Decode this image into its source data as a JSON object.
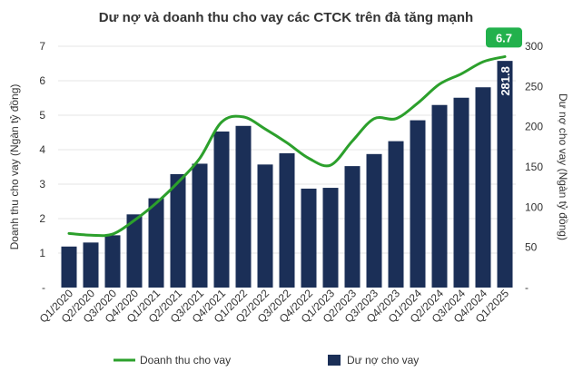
{
  "chart_data": {
    "type": "bar+line",
    "title": "Dư nợ và doanh thu cho vay các CTCK trên đà tăng mạnh",
    "categories": [
      "Q1/2020",
      "Q2/2020",
      "Q3/2020",
      "Q4/2020",
      "Q1/2021",
      "Q2/2021",
      "Q3/2021",
      "Q4/2021",
      "Q1/2022",
      "Q2/2022",
      "Q3/2022",
      "Q4/2022",
      "Q1/2023",
      "Q2/2023",
      "Q3/2023",
      "Q4/2023",
      "Q1/2024",
      "Q2/2024",
      "Q3/2024",
      "Q4/2024",
      "Q1/2025"
    ],
    "series": [
      {
        "name": "Doanh thu cho vay",
        "kind": "line",
        "axis": "left",
        "color": "#2ca02c",
        "values": [
          1.57,
          1.52,
          1.55,
          1.95,
          2.45,
          3.05,
          3.75,
          4.8,
          4.95,
          4.6,
          4.2,
          3.75,
          3.55,
          4.25,
          4.9,
          4.9,
          5.35,
          5.9,
          6.2,
          6.55,
          6.7
        ],
        "last_label": "6.7",
        "last_label_color": "#22b14c"
      },
      {
        "name": "Dư nợ cho vay",
        "kind": "bar",
        "axis": "right",
        "color": "#1b2f57",
        "values": [
          51,
          56,
          65,
          91,
          111,
          141,
          154,
          194,
          201,
          153,
          167,
          123,
          124,
          151,
          166,
          182,
          208,
          227,
          236,
          249,
          281.8
        ],
        "last_label": "281.8"
      }
    ],
    "left_axis": {
      "label": "Doanh thu cho vay (Ngàn tỷ đồng)",
      "ylim": [
        0,
        7
      ],
      "ticks": [
        0,
        1,
        2,
        3,
        4,
        5,
        6,
        7
      ],
      "tick_labels": [
        "-",
        "1",
        "2",
        "3",
        "4",
        "5",
        "6",
        "7"
      ]
    },
    "right_axis": {
      "label": "Dư nợ cho vay (Ngàn tỷ đồng)",
      "ylim": [
        0,
        300
      ],
      "ticks": [
        0,
        50,
        100,
        150,
        200,
        250,
        300
      ],
      "tick_labels": [
        "-",
        "50",
        "100",
        "150",
        "200",
        "250",
        "300"
      ]
    },
    "legend": {
      "position": "bottom"
    },
    "grid": true
  }
}
